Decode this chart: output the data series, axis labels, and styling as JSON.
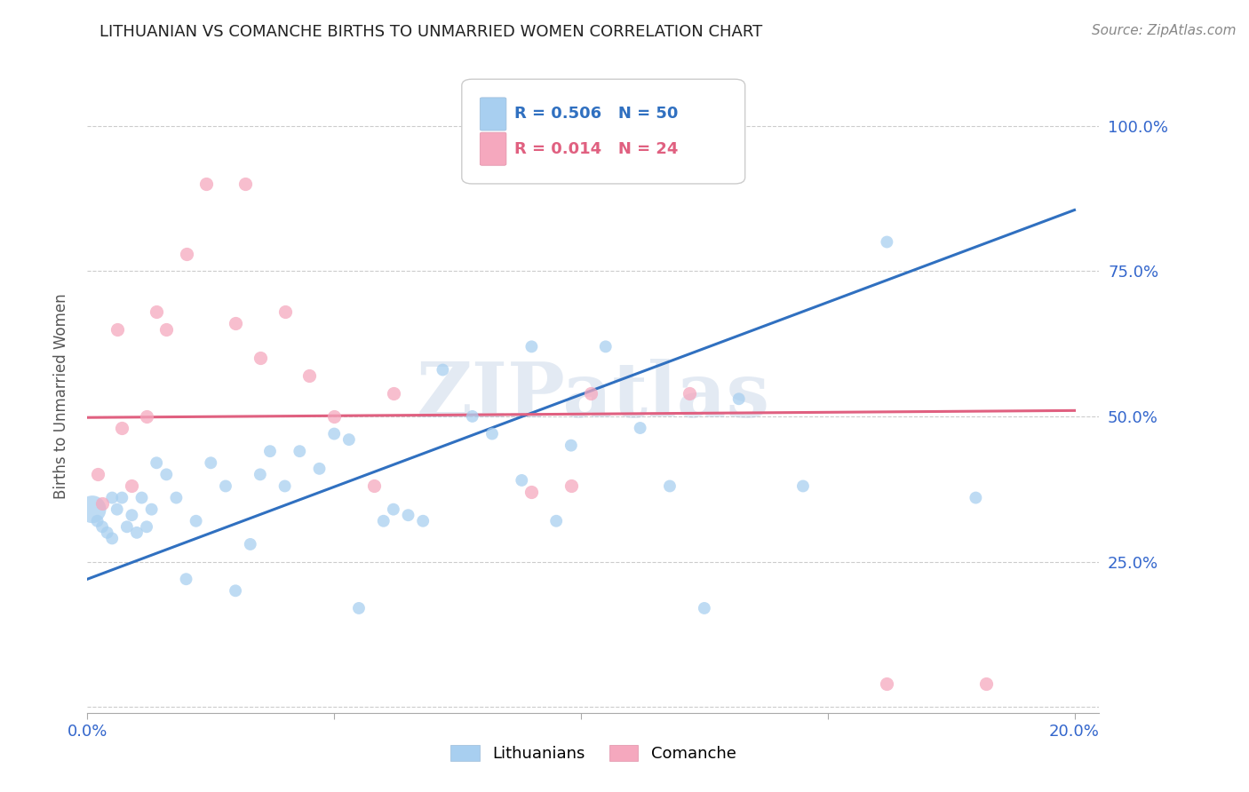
{
  "title": "LITHUANIAN VS COMANCHE BIRTHS TO UNMARRIED WOMEN CORRELATION CHART",
  "source": "Source: ZipAtlas.com",
  "ylabel": "Births to Unmarried Women",
  "watermark": "ZIPatlas",
  "xlim": [
    0.0,
    0.205
  ],
  "ylim": [
    -0.01,
    1.08
  ],
  "xtick_positions": [
    0.0,
    0.05,
    0.1,
    0.15,
    0.2
  ],
  "xtick_labels": [
    "0.0%",
    "",
    "",
    "",
    "20.0%"
  ],
  "ytick_positions": [
    0.0,
    0.25,
    0.5,
    0.75,
    1.0
  ],
  "ytick_labels": [
    "",
    "25.0%",
    "50.0%",
    "75.0%",
    "100.0%"
  ],
  "lithuanian_color": "#a8cff0",
  "comanche_color": "#f5a8be",
  "line_lith_color": "#3070c0",
  "line_com_color": "#e06080",
  "R_lith": 0.506,
  "N_lith": 50,
  "R_com": 0.014,
  "N_com": 24,
  "lith_line_x0": 0.0,
  "lith_line_y0": 0.22,
  "lith_line_x1": 0.2,
  "lith_line_y1": 0.855,
  "com_line_x0": 0.0,
  "com_line_y0": 0.498,
  "com_line_x1": 0.2,
  "com_line_y1": 0.51,
  "lith_x": [
    0.001,
    0.002,
    0.003,
    0.004,
    0.005,
    0.005,
    0.006,
    0.007,
    0.008,
    0.009,
    0.01,
    0.011,
    0.012,
    0.013,
    0.014,
    0.016,
    0.018,
    0.02,
    0.022,
    0.025,
    0.028,
    0.03,
    0.033,
    0.035,
    0.037,
    0.04,
    0.043,
    0.047,
    0.05,
    0.053,
    0.055,
    0.06,
    0.062,
    0.065,
    0.068,
    0.072,
    0.078,
    0.082,
    0.088,
    0.09,
    0.095,
    0.098,
    0.105,
    0.112,
    0.118,
    0.125,
    0.132,
    0.145,
    0.162,
    0.18
  ],
  "lith_y": [
    0.34,
    0.32,
    0.31,
    0.3,
    0.29,
    0.36,
    0.34,
    0.36,
    0.31,
    0.33,
    0.3,
    0.36,
    0.31,
    0.34,
    0.42,
    0.4,
    0.36,
    0.22,
    0.32,
    0.42,
    0.38,
    0.2,
    0.28,
    0.4,
    0.44,
    0.38,
    0.44,
    0.41,
    0.47,
    0.46,
    0.17,
    0.32,
    0.34,
    0.33,
    0.32,
    0.58,
    0.5,
    0.47,
    0.39,
    0.62,
    0.32,
    0.45,
    0.62,
    0.48,
    0.38,
    0.17,
    0.53,
    0.38,
    0.8,
    0.36
  ],
  "lith_sizes": [
    500,
    100,
    100,
    100,
    100,
    100,
    100,
    100,
    100,
    100,
    100,
    100,
    100,
    100,
    100,
    100,
    100,
    100,
    100,
    100,
    100,
    100,
    100,
    100,
    100,
    100,
    100,
    100,
    100,
    100,
    100,
    100,
    100,
    100,
    100,
    100,
    100,
    100,
    100,
    100,
    100,
    100,
    100,
    100,
    100,
    100,
    100,
    100,
    100,
    100
  ],
  "com_x": [
    0.002,
    0.003,
    0.006,
    0.007,
    0.009,
    0.012,
    0.014,
    0.016,
    0.02,
    0.024,
    0.03,
    0.032,
    0.035,
    0.04,
    0.045,
    0.05,
    0.058,
    0.062,
    0.09,
    0.098,
    0.102,
    0.122,
    0.162,
    0.182
  ],
  "com_y": [
    0.4,
    0.35,
    0.65,
    0.48,
    0.38,
    0.5,
    0.68,
    0.65,
    0.78,
    0.9,
    0.66,
    0.9,
    0.6,
    0.68,
    0.57,
    0.5,
    0.38,
    0.54,
    0.37,
    0.38,
    0.54,
    0.54,
    0.04,
    0.04
  ]
}
